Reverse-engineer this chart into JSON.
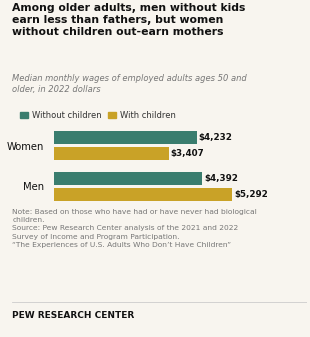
{
  "title": "Among older adults, men without kids\nearn less than fathers, but women\nwithout children out-earn mothers",
  "subtitle": "Median monthly wages of employed adults ages 50 and\nolder, in 2022 dollars",
  "categories": [
    "Women",
    "Men"
  ],
  "without_children": [
    4232,
    4392
  ],
  "with_children": [
    3407,
    5292
  ],
  "labels_without": [
    "$4,232",
    "$4,392"
  ],
  "labels_with": [
    "$3,407",
    "$5,292"
  ],
  "color_without": "#3a7d6e",
  "color_with": "#c9a227",
  "legend_labels": [
    "Without children",
    "With children"
  ],
  "note_line1": "Note: Based on those who have had or have never had biological",
  "note_line2": "children.",
  "note_line3": "Source: Pew Research Center analysis of the 2021 and 2022",
  "note_line4": "Survey of Income and Program Participation.",
  "note_line5": "“The Experiences of U.S. Adults Who Don’t Have Children”",
  "footer": "PEW RESEARCH CENTER",
  "background_color": "#f8f5ef",
  "max_val": 5800
}
